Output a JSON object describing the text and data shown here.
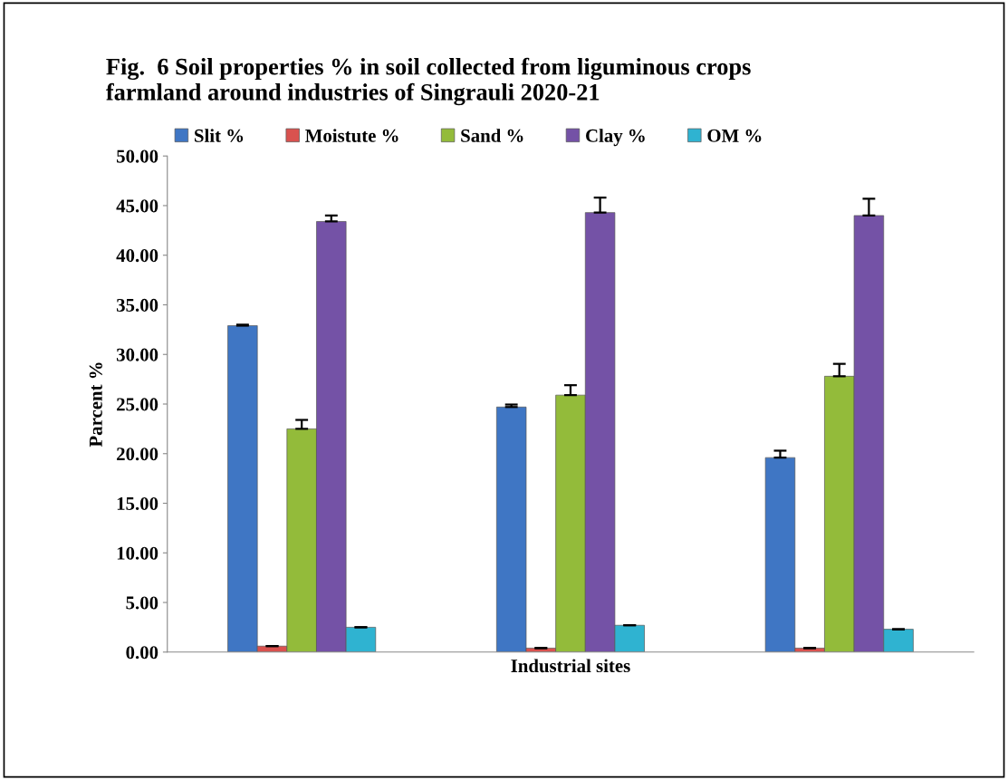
{
  "chart_data": {
    "type": "bar",
    "title": "Fig.  6 Soil properties % in soil collected from liguminous crops\nfarmland around industries of Singrauli 2020-21",
    "xlabel": "Industrial sites",
    "ylabel": "Parcent %",
    "categories": [
      null,
      null,
      null
    ],
    "series": [
      {
        "name": "Slit %",
        "color": "#3f76c4",
        "values": [
          32.9,
          24.7,
          19.6
        ],
        "errors": [
          [
            32.9,
            33.0
          ],
          [
            24.7,
            24.95
          ],
          [
            19.6,
            20.3
          ]
        ]
      },
      {
        "name": "Moistute %",
        "color": "#d9524f",
        "values": [
          0.6,
          0.4,
          0.4
        ],
        "errors": [
          [
            0.6,
            0.6
          ],
          [
            0.4,
            0.4
          ],
          [
            0.4,
            0.4
          ]
        ]
      },
      {
        "name": "Sand %",
        "color": "#93bb3a",
        "values": [
          22.5,
          25.9,
          27.8
        ],
        "errors": [
          [
            22.5,
            23.4
          ],
          [
            25.9,
            26.9
          ],
          [
            27.8,
            29.05
          ]
        ]
      },
      {
        "name": "Clay %",
        "color": "#7452a6",
        "values": [
          43.4,
          44.3,
          44.0
        ],
        "errors": [
          [
            43.4,
            44.0
          ],
          [
            44.3,
            45.8
          ],
          [
            44.0,
            45.7
          ]
        ]
      },
      {
        "name": "OM %",
        "color": "#2fb3d1",
        "values": [
          2.5,
          2.7,
          2.3
        ],
        "errors": [
          [
            2.5,
            2.5
          ],
          [
            2.7,
            2.7
          ],
          [
            2.3,
            2.3
          ]
        ]
      }
    ],
    "ylim": [
      0,
      50
    ],
    "yticks": [
      {
        "value": 0,
        "label": "0.00"
      },
      {
        "value": 5,
        "label": "5.00"
      },
      {
        "value": 10,
        "label": "10.00"
      },
      {
        "value": 15,
        "label": "15.00"
      },
      {
        "value": 20,
        "label": "20.00"
      },
      {
        "value": 25,
        "label": "25.00"
      },
      {
        "value": 30,
        "label": "30.00"
      },
      {
        "value": 35,
        "label": "35.00"
      },
      {
        "value": 40,
        "label": "40.00"
      },
      {
        "value": 45,
        "label": "45.00"
      },
      {
        "value": 50,
        "label": "50.00"
      }
    ],
    "grid": false,
    "legend": "top"
  }
}
